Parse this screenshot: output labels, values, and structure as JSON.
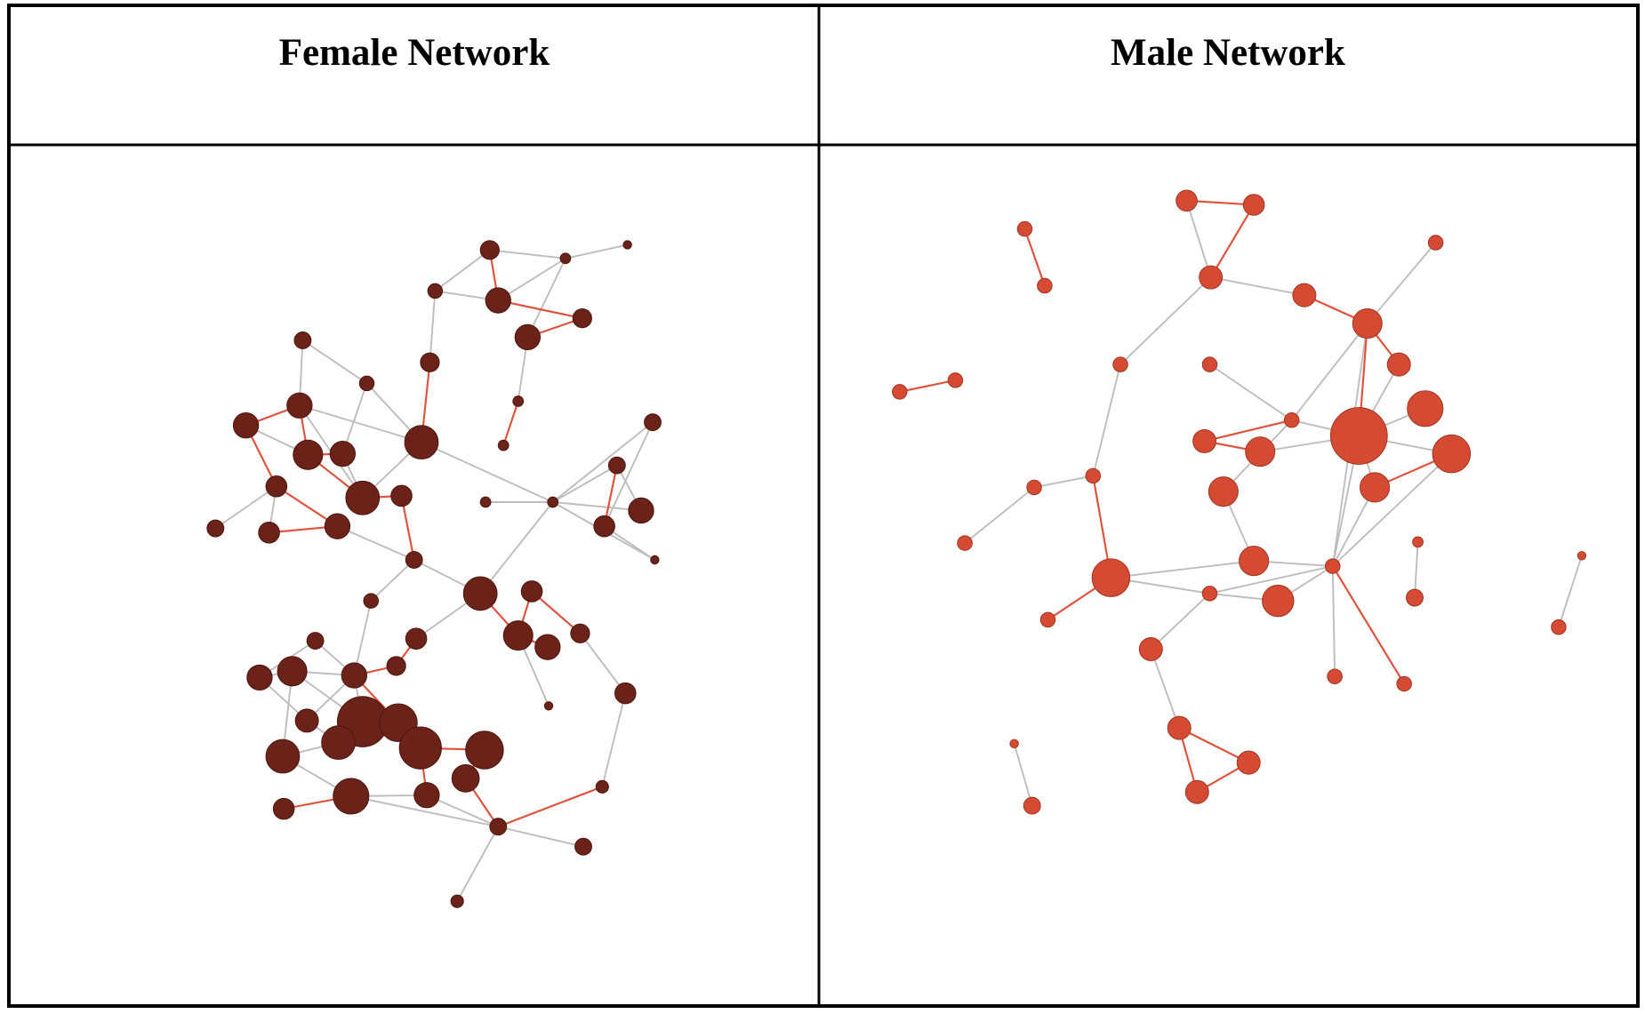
{
  "table": {
    "headers": [
      "Female Network",
      "Male Network"
    ]
  }
}
